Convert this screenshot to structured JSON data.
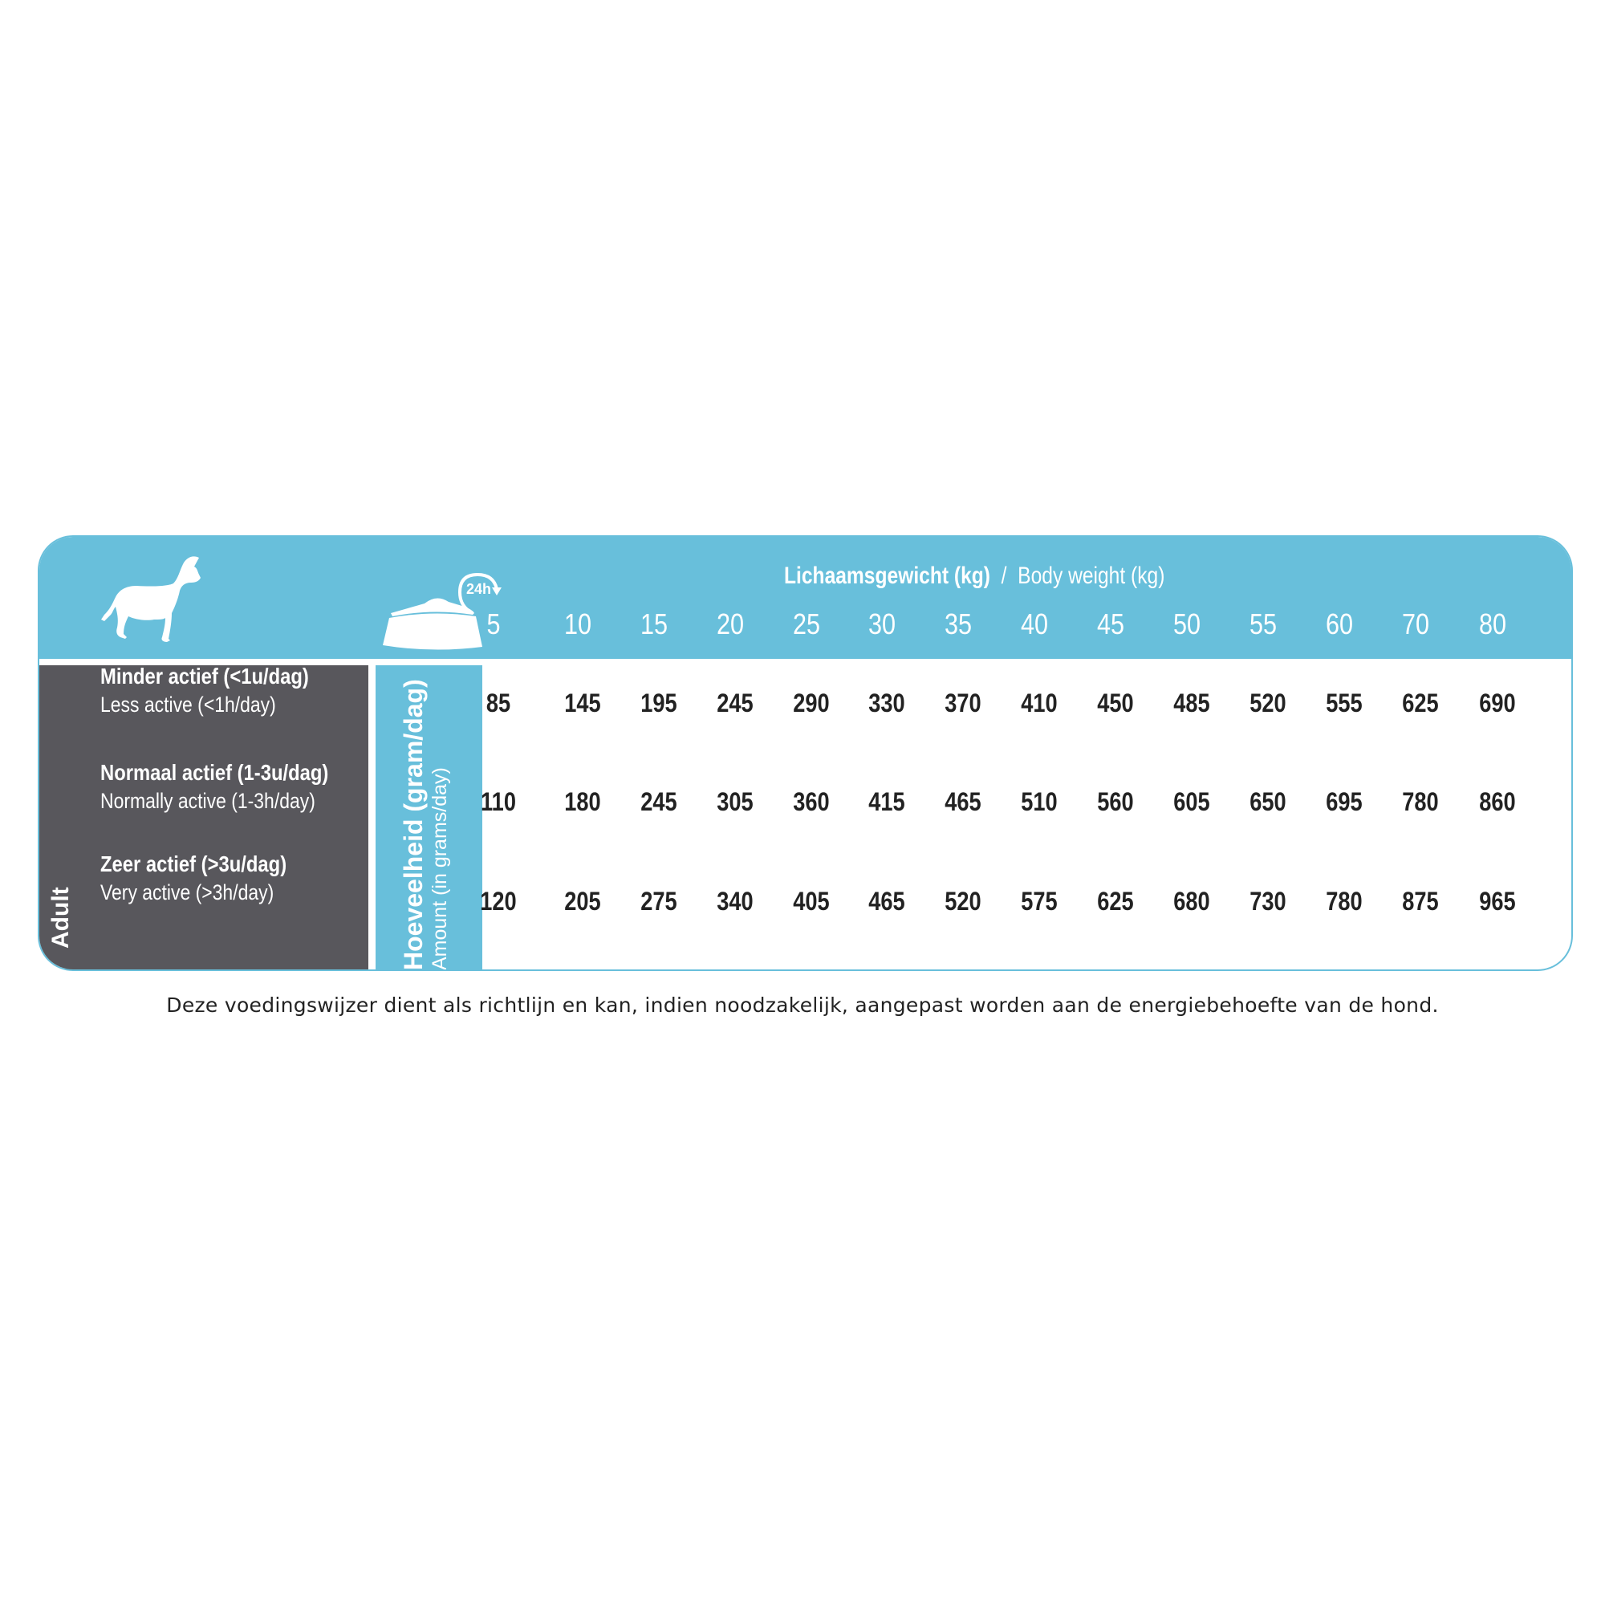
{
  "header": {
    "title_nl": "Lichaamsgewicht (kg)",
    "separator": "/",
    "title_en": "Body weight (kg)",
    "bowl_badge": "24h",
    "icons": [
      "dog-icon",
      "food-bowl-24h-icon"
    ],
    "weights": [
      "5",
      "10",
      "15",
      "20",
      "25",
      "30",
      "35",
      "40",
      "45",
      "50",
      "55",
      "60",
      "70",
      "80"
    ]
  },
  "side": {
    "group": "Adult",
    "amount_nl": "Hoeveelheid (gram/dag)",
    "amount_en": "Amount (in grams/day)"
  },
  "rows": [
    {
      "nl": "Minder actief (<1u/dag)",
      "en": "Less active (<1h/day)",
      "values": [
        "85",
        "145",
        "195",
        "245",
        "290",
        "330",
        "370",
        "410",
        "450",
        "485",
        "520",
        "555",
        "625",
        "690"
      ]
    },
    {
      "nl": "Normaal actief (1-3u/dag)",
      "en": "Normally active (1-3h/day)",
      "values": [
        "110",
        "180",
        "245",
        "305",
        "360",
        "415",
        "465",
        "510",
        "560",
        "605",
        "650",
        "695",
        "780",
        "860"
      ]
    },
    {
      "nl": "Zeer actief (>3u/dag)",
      "en": "Very active (>3h/day)",
      "values": [
        "120",
        "205",
        "275",
        "340",
        "405",
        "465",
        "520",
        "575",
        "625",
        "680",
        "730",
        "780",
        "875",
        "965"
      ]
    }
  ],
  "footnote": "Deze voedingswijzer dient als richtlijn en kan, indien noodzakelijk, aangepast worden aan de energiebehoefte van de hond.",
  "colors": {
    "accent": "#68bfdb",
    "panel": "#58575c",
    "text": "#222222"
  }
}
